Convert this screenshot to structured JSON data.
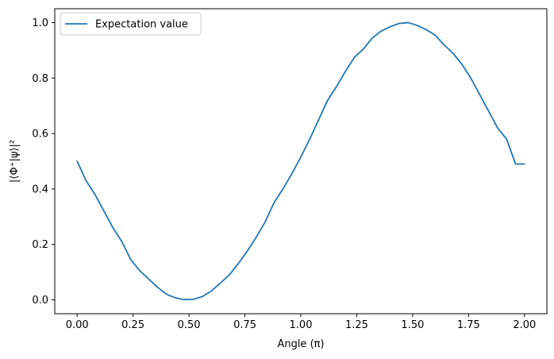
{
  "chart_data": {
    "type": "line",
    "title": "",
    "xlabel": "Angle (π)",
    "ylabel": "|⟨Φ⁺|ψ⟩|²",
    "xlim": [
      -0.1,
      2.1
    ],
    "ylim": [
      -0.05,
      1.05
    ],
    "xticks": [
      0.0,
      0.25,
      0.5,
      0.75,
      1.0,
      1.25,
      1.5,
      1.75,
      2.0
    ],
    "xtick_labels": [
      "0.00",
      "0.25",
      "0.50",
      "0.75",
      "1.00",
      "1.25",
      "1.50",
      "1.75",
      "2.00"
    ],
    "yticks": [
      0.0,
      0.2,
      0.4,
      0.6,
      0.8,
      1.0
    ],
    "ytick_labels": [
      "0.0",
      "0.2",
      "0.4",
      "0.6",
      "0.8",
      "1.0"
    ],
    "grid": false,
    "legend_position": "upper-left",
    "series": [
      {
        "name": "Expectation value",
        "color": "#1f77b4",
        "x": [
          0.0,
          0.04,
          0.08,
          0.12,
          0.16,
          0.2,
          0.24,
          0.28,
          0.32,
          0.36,
          0.4,
          0.44,
          0.48,
          0.52,
          0.56,
          0.6,
          0.64,
          0.68,
          0.72,
          0.76,
          0.8,
          0.84,
          0.88,
          0.92,
          0.96,
          1.0,
          1.04,
          1.08,
          1.12,
          1.16,
          1.2,
          1.24,
          1.28,
          1.32,
          1.36,
          1.4,
          1.44,
          1.48,
          1.52,
          1.56,
          1.6,
          1.64,
          1.68,
          1.72,
          1.76,
          1.8,
          1.84,
          1.88,
          1.92,
          1.96,
          2.0
        ],
        "y": [
          0.5,
          0.43,
          0.38,
          0.32,
          0.26,
          0.21,
          0.145,
          0.105,
          0.075,
          0.045,
          0.02,
          0.007,
          0.001,
          0.002,
          0.012,
          0.032,
          0.06,
          0.09,
          0.13,
          0.175,
          0.225,
          0.28,
          0.35,
          0.4,
          0.455,
          0.515,
          0.58,
          0.65,
          0.72,
          0.77,
          0.825,
          0.875,
          0.905,
          0.945,
          0.97,
          0.985,
          0.997,
          1.0,
          0.99,
          0.975,
          0.955,
          0.92,
          0.89,
          0.85,
          0.8,
          0.74,
          0.68,
          0.62,
          0.58,
          0.49,
          0.49
        ]
      }
    ]
  }
}
